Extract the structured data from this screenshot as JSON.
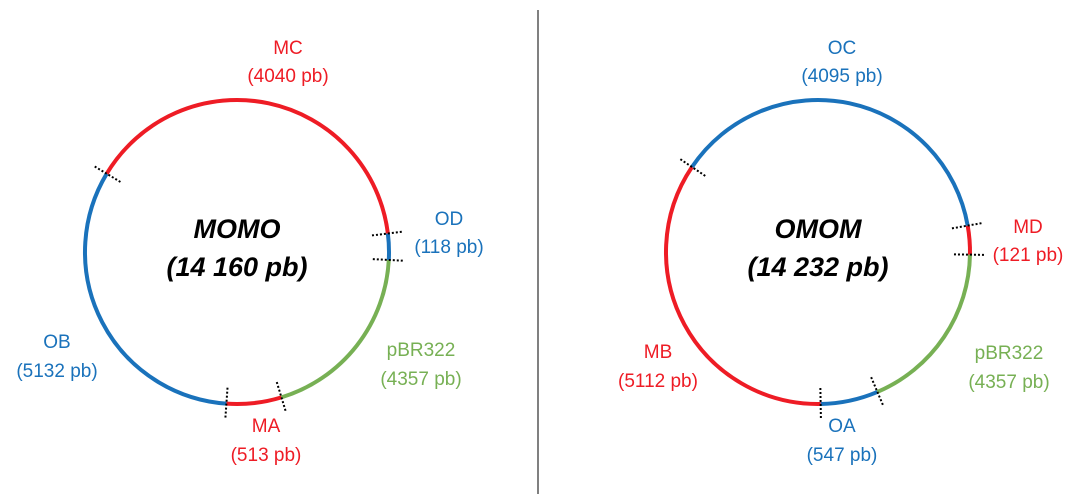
{
  "colors": {
    "red": "#ee1c25",
    "blue": "#1a72bb",
    "green": "#77b054",
    "divider": "#000000"
  },
  "plasmids": [
    {
      "name": "MOMO",
      "size": "(14 160 pb)",
      "segments": [
        {
          "name": "MC",
          "size": "(4040 pb)",
          "color": "red"
        },
        {
          "name": "OD",
          "size": "(118 pb)",
          "color": "blue"
        },
        {
          "name": "pBR322",
          "size": "(4357 pb)",
          "color": "green"
        },
        {
          "name": "MA",
          "size": "(513 pb)",
          "color": "red"
        },
        {
          "name": "OB",
          "size": "(5132 pb)",
          "color": "blue"
        }
      ]
    },
    {
      "name": "OMOM",
      "size": "(14 232 pb)",
      "segments": [
        {
          "name": "OC",
          "size": "(4095 pb)",
          "color": "blue"
        },
        {
          "name": "MD",
          "size": "(121 pb)",
          "color": "red"
        },
        {
          "name": "pBR322",
          "size": "(4357 pb)",
          "color": "green"
        },
        {
          "name": "OA",
          "size": "(547 pb)",
          "color": "blue"
        },
        {
          "name": "MB",
          "size": "(5112 pb)",
          "color": "red"
        }
      ]
    }
  ]
}
